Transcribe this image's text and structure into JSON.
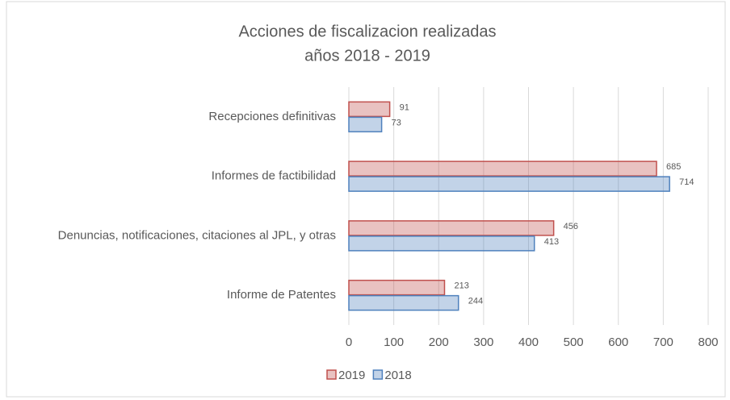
{
  "chart_data": {
    "type": "hbar",
    "title": "Acciones de fiscalizacion realizadas",
    "subtitle": "años 2018 - 2019",
    "categories": [
      "Recepciones definitivas",
      "Informes de factibilidad",
      "Denuncias, notificaciones, citaciones al JPL, y otras",
      "Informe de Patentes"
    ],
    "series": [
      {
        "name": "2019",
        "color": "#c0504d",
        "values": [
          91,
          685,
          456,
          213
        ]
      },
      {
        "name": "2018",
        "color": "#4f81bd",
        "values": [
          73,
          714,
          413,
          244
        ]
      }
    ],
    "xlim": [
      0,
      800
    ],
    "xticks": [
      0,
      100,
      200,
      300,
      400,
      500,
      600,
      700,
      800
    ],
    "grid": true,
    "legend": "bottom"
  }
}
